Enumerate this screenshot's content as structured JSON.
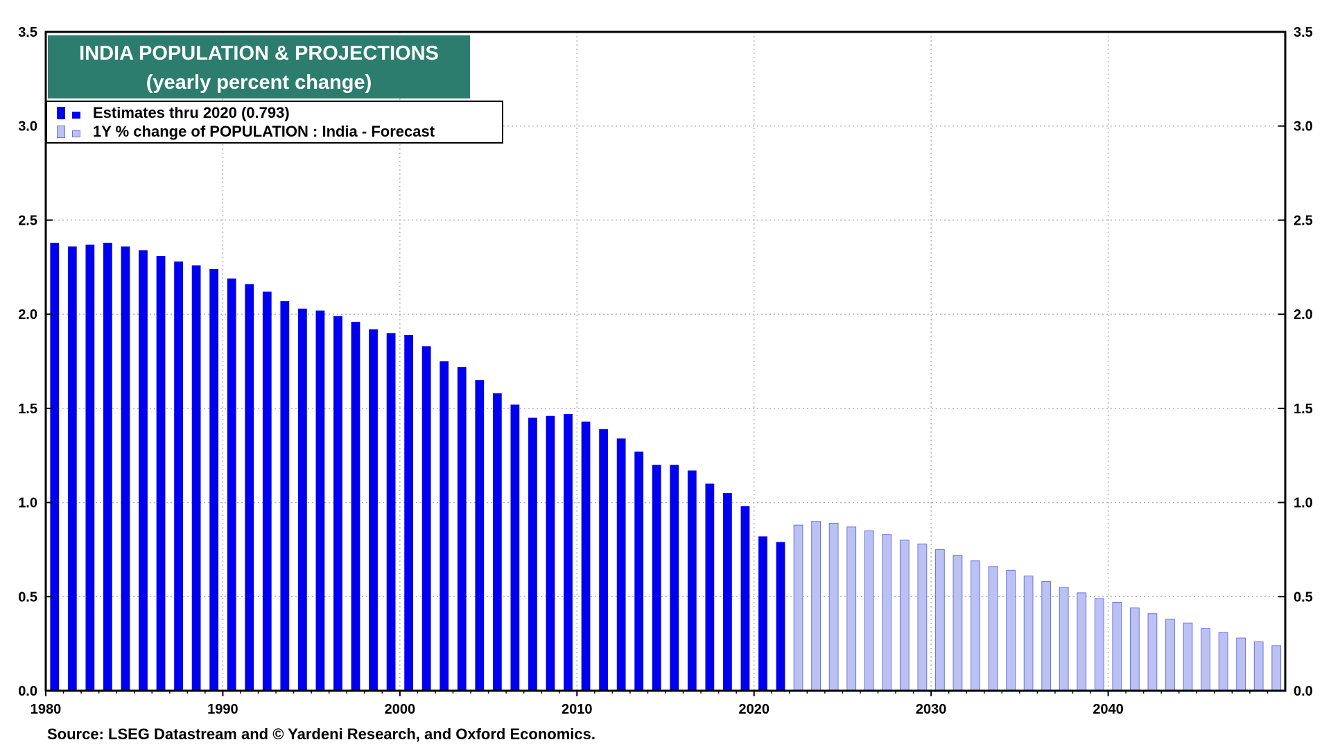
{
  "chart_data": {
    "type": "bar",
    "title": "INDIA POPULATION & PROJECTIONS",
    "subtitle": "(yearly percent change)",
    "source": "Source: LSEG Datastream and © Yardeni Research, and Oxford Economics.",
    "ylim": [
      0,
      3.5
    ],
    "y_ticks": [
      "0.0",
      "0.5",
      "1.0",
      "1.5",
      "2.0",
      "2.5",
      "3.0",
      "3.5"
    ],
    "x_ticks": [
      "1980",
      "1990",
      "2000",
      "2010",
      "2020",
      "2030",
      "2040"
    ],
    "xlim": [
      1980,
      2050
    ],
    "grid": true,
    "legend_position": "top-left",
    "series": [
      {
        "name": "Estimates thru 2020 (0.793)",
        "color": "#0000ee",
        "x": [
          1981,
          1982,
          1983,
          1984,
          1985,
          1986,
          1987,
          1988,
          1989,
          1990,
          1991,
          1992,
          1993,
          1994,
          1995,
          1996,
          1997,
          1998,
          1999,
          2000,
          2001,
          2002,
          2003,
          2004,
          2005,
          2006,
          2007,
          2008,
          2009,
          2010,
          2011,
          2012,
          2013,
          2014,
          2015,
          2016,
          2017,
          2018,
          2019,
          2020,
          2021,
          2022
        ],
        "values": [
          2.38,
          2.36,
          2.37,
          2.38,
          2.36,
          2.34,
          2.31,
          2.28,
          2.26,
          2.24,
          2.19,
          2.16,
          2.12,
          2.07,
          2.03,
          2.02,
          1.99,
          1.96,
          1.92,
          1.9,
          1.89,
          1.83,
          1.75,
          1.72,
          1.65,
          1.58,
          1.52,
          1.45,
          1.46,
          1.47,
          1.43,
          1.39,
          1.34,
          1.27,
          1.2,
          1.2,
          1.17,
          1.1,
          1.05,
          0.98,
          0.82,
          0.79
        ]
      },
      {
        "name": "1Y % change of POPULATION : India - Forecast",
        "color": "#bcc1f4",
        "border": "#6a74e0",
        "x": [
          2023,
          2024,
          2025,
          2026,
          2027,
          2028,
          2029,
          2030,
          2031,
          2032,
          2033,
          2034,
          2035,
          2036,
          2037,
          2038,
          2039,
          2040,
          2041,
          2042,
          2043,
          2044,
          2045,
          2046,
          2047,
          2048,
          2049,
          2050
        ],
        "values": [
          0.88,
          0.9,
          0.89,
          0.87,
          0.85,
          0.83,
          0.8,
          0.78,
          0.75,
          0.72,
          0.69,
          0.66,
          0.64,
          0.61,
          0.58,
          0.55,
          0.52,
          0.49,
          0.47,
          0.44,
          0.41,
          0.38,
          0.36,
          0.33,
          0.31,
          0.28,
          0.26,
          0.24
        ]
      }
    ]
  }
}
